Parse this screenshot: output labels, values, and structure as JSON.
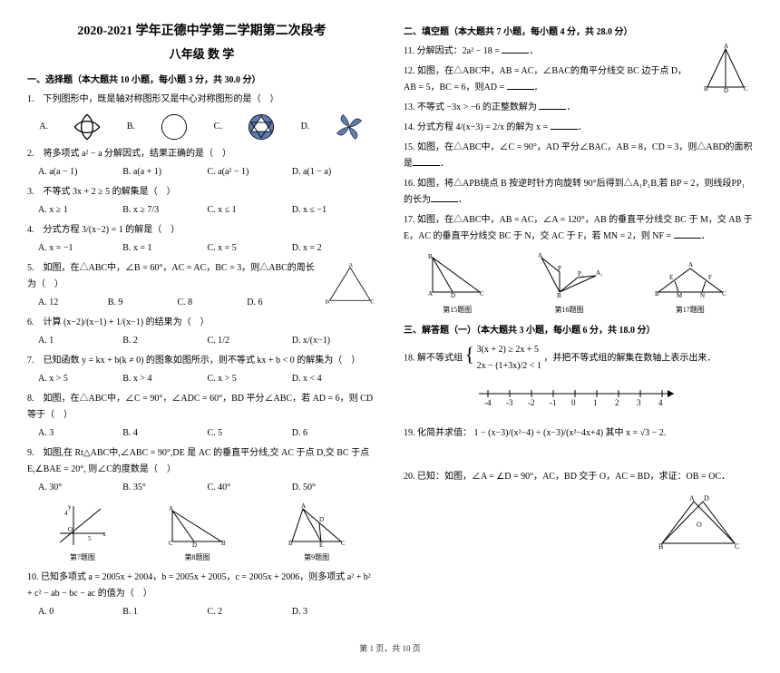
{
  "header": {
    "title": "2020-2021 学年正德中学第二学期第二次段考",
    "subtitle": "八年级 数 学"
  },
  "section1": {
    "head": "一、选择题（本大题共 10 小题，每小题 3 分，共 30.0 分）",
    "q1": "1.　下列图形中，既是轴对称图形又是中心对称图形的是（　）",
    "q1_labels": {
      "A": "A.",
      "B": "B.",
      "C": "C.",
      "D": "D."
    },
    "q2": "2.　将多项式 a² − a 分解因式，结果正确的是（　）",
    "q2_opts": {
      "A": "A. a(a − 1)",
      "B": "B. a(a + 1)",
      "C": "C. a(a² − 1)",
      "D": "D. a(1 − a)"
    },
    "q3": "3.　不等式 3x + 2 ≥ 5 的解集是（　）",
    "q3_opts": {
      "A": "A. x ≥ 1",
      "B": "B. x ≥ 7/3",
      "C": "C. x ≤ 1",
      "D": "D. x ≤ −1"
    },
    "q4": "4.　分式方程 3/(x−2) = 1 的解是（　）",
    "q4_opts": {
      "A": "A. x = −1",
      "B": "B. x = 1",
      "C": "C. x = 5",
      "D": "D. x = 2"
    },
    "q5": "5.　如图，在△ABC中，∠B = 60°，AC = AC，BC = 3，则△ABC的周长为（　）",
    "q5_opts": {
      "A": "A. 12",
      "B": "B. 9",
      "C": "C. 8",
      "D": "D. 6"
    },
    "q6": "6.　计算 (x−2)/(x−1) + 1/(x−1) 的结果为（　）",
    "q6_opts": {
      "A": "A. 1",
      "B": "B. 2",
      "C": "C. 1/2",
      "D": "D. x/(x−1)"
    },
    "q7": "7.　已知函数 y = kx + b(k ≠ 0) 的图象如图所示，则不等式 kx + b < 0 的解集为（　）",
    "q7_opts": {
      "A": "A. x > 5",
      "B": "B. x > 4",
      "C": "C. x > 5",
      "D": "D. x < 4"
    },
    "q8": "8.　如图，在△ABC中，∠C = 90°，∠ADC = 60°，BD 平分∠ABC，若 AD = 6，则 CD 等于（　）",
    "q8_opts": {
      "A": "A. 3",
      "B": "B. 4",
      "C": "C. 5",
      "D": "D. 6"
    },
    "q9": "9.　如图,在 Rt△ABC中,∠ABC = 90°,DE 是 AC 的垂直平分线,交 AC 于点 D,交 BC 于点 E,∠BAE = 20°, 则∠C的度数是（　）",
    "q9_opts": {
      "A": "A. 30°",
      "B": "B. 35°",
      "C": "C. 40°",
      "D": "D. 50°"
    },
    "q10": "10. 已知多项式 a = 2005x + 2004，b = 2005x + 2005，c = 2005x + 2006，则多项式 a² + b² + c² − ab − bc − ac 的值为（　）",
    "q10_opts": {
      "A": "A. 0",
      "B": "B. 1",
      "C": "C. 2",
      "D": "D. 3"
    },
    "figlabels": {
      "f7": "第7题图",
      "f8": "第8题图",
      "f9": "第9题图"
    }
  },
  "section2": {
    "head": "二、填空题（本大题共 7 小题，每小题 4 分，共 28.0 分）",
    "q11": "11. 分解因式：2a² − 18 = ",
    "q12": "12. 如图，在△ABC中，AB = AC，∠BAC的角平分线交 BC 边于点 D，AB = 5，BC = 6，则AD = ",
    "q13": "13. 不等式 −3x > −6 的正整数解为 ",
    "q14": "14. 分式方程 4/(x−3) = 2/x 的解为 x = ",
    "q15": "15. 如图，在△ABC中，∠C = 90°，AD 平分∠BAC，AB = 8，CD = 3，则△ABD的面积是",
    "q16": "16. 如图，将△APB绕点 B 按逆时针方向旋转 90°后得到△A₁P₁B,若 BP = 2，则线段PP₁的长为",
    "q17": "17. 如图，在△ABC中，AB = AC，∠A = 120°，AB 的垂直平分线交 BC 于 M，交 AB 于 E，AC 的垂直平分线交 BC 于 N，交 AC 于 F，若 MN = 2，则 NF = ",
    "figlabels": {
      "f15": "第15题图",
      "f16": "第16题图",
      "f17": "第17题图"
    }
  },
  "section3": {
    "head": "三、解答题（一）（本大题共 3 小题，每小题 6 分，共 18.0 分）",
    "q18_text": "18. 解不等式组",
    "q18_sys1": "3(x + 2) ≥ 2x + 5",
    "q18_sys2": "2x − (1+3x)/2 < 1",
    "q18_after": "，并把不等式组的解集在数轴上表示出来．",
    "numline_ticks": [
      "-4",
      "-3",
      "-2",
      "-1",
      "0",
      "1",
      "2",
      "3",
      "4"
    ],
    "q19_text": "19. 化简并求值：",
    "q19_expr": "1 − (x−3)/(x²−4) ÷ (x−3)/(x²−4x+4)",
    "q19_where": " 其中 x = √3 − 2.",
    "q20_text": "20. 已知：如图，∠A = ∠D = 90°，AC，BD 交于 O，AC = BD，求证：OB = OC．"
  },
  "footer": "第 1 页，共 10 页",
  "colors": {
    "ink": "#000000",
    "bg": "#ffffff",
    "accent_blue": "#5b7db5"
  }
}
